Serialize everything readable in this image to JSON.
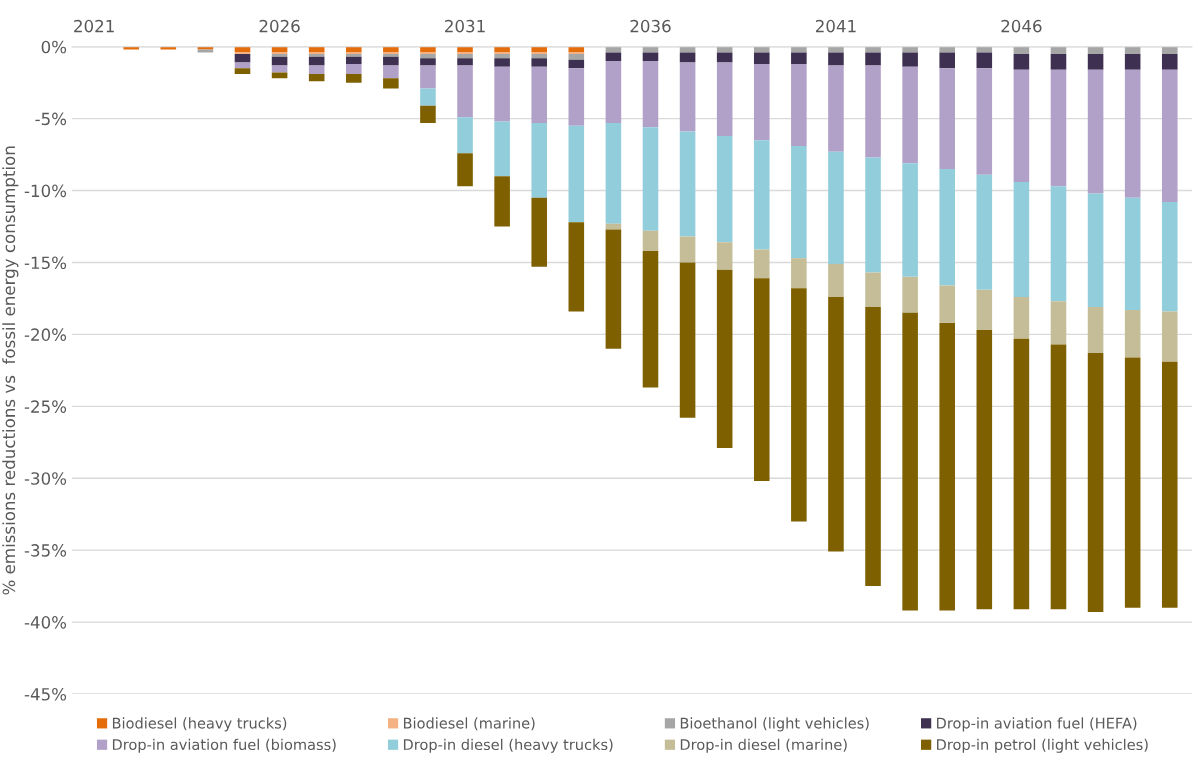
{
  "chart_data": {
    "type": "bar",
    "stacked": true,
    "ylabel": "% emissions reductions vs  fossil energy consumption",
    "categories": [
      "2021",
      null,
      null,
      null,
      null,
      "2026",
      null,
      null,
      null,
      null,
      "2031",
      null,
      null,
      null,
      null,
      "2036",
      null,
      null,
      null,
      null,
      "2041",
      null,
      null,
      null,
      null,
      "2046",
      null,
      null,
      null,
      null
    ],
    "series": [
      {
        "name": "Biodiesel (heavy trucks)",
        "color": "#e46c0a",
        "values": [
          0,
          -0.2,
          -0.2,
          -0.2,
          -0.4,
          -0.4,
          -0.4,
          -0.4,
          -0.4,
          -0.4,
          -0.4,
          -0.4,
          -0.4,
          -0.4,
          0,
          0,
          0,
          0,
          0,
          0,
          0,
          0,
          0,
          0,
          0,
          0,
          0,
          0,
          0,
          0
        ]
      },
      {
        "name": "Biodiesel (marine)",
        "color": "#f4b183",
        "values": [
          0,
          0,
          0,
          0,
          -0.1,
          -0.1,
          -0.1,
          -0.1,
          -0.1,
          -0.1,
          -0.1,
          -0.1,
          -0.1,
          -0.1,
          0,
          0,
          0,
          0,
          0,
          0,
          0,
          0,
          0,
          0,
          0,
          0,
          0,
          0,
          0,
          0
        ]
      },
      {
        "name": "Bioethanol (light vehicles)",
        "color": "#a6a6a6",
        "values": [
          0,
          0,
          0,
          -0.2,
          0,
          -0.2,
          -0.2,
          -0.2,
          -0.2,
          -0.3,
          -0.3,
          -0.3,
          -0.3,
          -0.4,
          -0.4,
          -0.4,
          -0.4,
          -0.4,
          -0.4,
          -0.4,
          -0.4,
          -0.4,
          -0.4,
          -0.4,
          -0.4,
          -0.5,
          -0.5,
          -0.5,
          -0.5,
          -0.5
        ]
      },
      {
        "name": "Drop-in aviation fuel (HEFA)",
        "color": "#3d3050",
        "values": [
          0,
          0,
          0,
          0,
          -0.6,
          -0.6,
          -0.6,
          -0.5,
          -0.6,
          -0.5,
          -0.5,
          -0.6,
          -0.6,
          -0.6,
          -0.6,
          -0.6,
          -0.7,
          -0.7,
          -0.8,
          -0.8,
          -0.9,
          -0.9,
          -1.0,
          -1.1,
          -1.1,
          -1.1,
          -1.1,
          -1.1,
          -1.1,
          -1.1
        ]
      },
      {
        "name": "Drop-in aviation fuel (biomass)",
        "color": "#b1a0c7",
        "values": [
          0,
          0,
          0,
          0,
          -0.4,
          -0.5,
          -0.6,
          -0.7,
          -0.9,
          -1.6,
          -3.6,
          -3.8,
          -3.9,
          -4.0,
          -4.3,
          -4.6,
          -4.8,
          -5.1,
          -5.3,
          -5.7,
          -6.0,
          -6.4,
          -6.7,
          -7.0,
          -7.4,
          -7.8,
          -8.1,
          -8.6,
          -8.9,
          -9.2
        ]
      },
      {
        "name": "Drop-in diesel (heavy trucks)",
        "color": "#92cddc",
        "values": [
          0,
          0,
          0,
          0,
          0,
          0,
          0,
          0,
          0,
          -1.2,
          -2.5,
          -3.8,
          -5.2,
          -6.7,
          -7.0,
          -7.2,
          -7.3,
          -7.4,
          -7.6,
          -7.8,
          -7.8,
          -8.0,
          -7.9,
          -8.1,
          -8.0,
          -8.0,
          -8.0,
          -7.9,
          -7.8,
          -7.6
        ]
      },
      {
        "name": "Drop-in diesel (marine)",
        "color": "#c4bd97",
        "values": [
          0,
          0,
          0,
          0,
          0,
          0,
          0,
          0,
          0,
          0,
          0,
          0,
          0,
          0,
          -0.4,
          -1.4,
          -1.8,
          -1.9,
          -2.0,
          -2.1,
          -2.3,
          -2.4,
          -2.5,
          -2.6,
          -2.8,
          -2.9,
          -3.0,
          -3.2,
          -3.3,
          -3.5
        ]
      },
      {
        "name": "Drop-in petrol (light vehicles)",
        "color": "#7f6000",
        "values": [
          0,
          0,
          0,
          0,
          -0.4,
          -0.4,
          -0.5,
          -0.6,
          -0.7,
          -1.2,
          -2.3,
          -3.5,
          -4.8,
          -6.2,
          -8.3,
          -9.5,
          -10.8,
          -12.4,
          -14.1,
          -16.2,
          -17.7,
          -19.4,
          -20.7,
          -20.0,
          -19.4,
          -18.8,
          -18.4,
          -18.0,
          -17.4,
          -17.1
        ]
      }
    ],
    "ylim": [
      -45,
      0
    ],
    "yticks": [
      {
        "value": -45,
        "label": "-45%"
      },
      {
        "value": -40,
        "label": "-40%"
      },
      {
        "value": -35,
        "label": "-35%"
      },
      {
        "value": -30,
        "label": "-30%"
      },
      {
        "value": -25,
        "label": "-25%"
      },
      {
        "value": -20,
        "label": "-20%"
      },
      {
        "value": -15,
        "label": "-15%"
      },
      {
        "value": -10,
        "label": "-10%"
      },
      {
        "value": -5,
        "label": "-5%"
      },
      {
        "value": 0,
        "label": "0%"
      }
    ],
    "grid": "y",
    "legend": "bottom"
  }
}
